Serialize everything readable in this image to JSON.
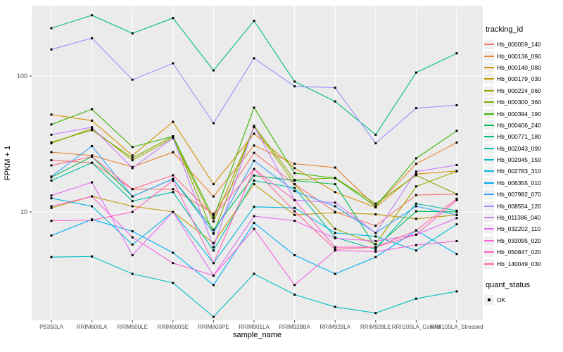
{
  "figure": {
    "xlabel": "sample_name",
    "ylabel": "FPKM + 1",
    "panel_bg": "#EBEBEB",
    "grid_color": "#FFFFFF",
    "tick_label_color": "#4D4D4D",
    "legend": {
      "color_title": "tracking_id",
      "shape_title": "quant_status",
      "shape_entry": "OK"
    }
  },
  "chart_data": {
    "type": "line",
    "title": "",
    "xlabel": "sample_name",
    "ylabel": "FPKM + 1",
    "y_scale": "log10",
    "ylim": [
      1.6,
      330
    ],
    "yticks": [
      100,
      10
    ],
    "minor_gridline_values": [
      316.2,
      31.62,
      3.162
    ],
    "legend_position": "right",
    "marker": "black-square",
    "grid": "on",
    "categories": [
      "PB350LA",
      "RRIM600LA",
      "RRIM600LE",
      "RRIM600SE",
      "RRIM600PE",
      "RRIM901LA",
      "RRIM928BA",
      "RRIM928LA",
      "RRIM928LE",
      "RRII105LA_Control",
      "RRII105LA_Stressed"
    ],
    "series": [
      {
        "name": "Hb_000059_140",
        "color": "#F8766D",
        "values": [
          24,
          23,
          14.7,
          14.7,
          9.7,
          27.2,
          16,
          10,
          7.9,
          13.3,
          13.5
        ]
      },
      {
        "name": "Hb_000136_090",
        "color": "#EA8331",
        "values": [
          27.5,
          26,
          21.4,
          27.5,
          13,
          30.8,
          22.6,
          21.2,
          11,
          22.6,
          32.4
        ]
      },
      {
        "name": "Hb_000140_080",
        "color": "#D89000",
        "values": [
          52,
          47,
          26,
          46,
          16,
          37.6,
          21,
          14,
          10.8,
          19,
          20
        ]
      },
      {
        "name": "Hb_000179_030",
        "color": "#C09B00",
        "values": [
          10.7,
          13,
          11,
          10,
          5.9,
          16,
          9.5,
          9.9,
          9.6,
          8.9,
          9.5
        ]
      },
      {
        "name": "Hb_000224_060",
        "color": "#A3A500",
        "values": [
          32,
          41,
          24,
          35,
          8.5,
          42,
          16,
          7.5,
          5.8,
          15.4,
          19.9
        ]
      },
      {
        "name": "Hb_000300_360",
        "color": "#7CAE00",
        "values": [
          32.5,
          40,
          25,
          36,
          6.9,
          43,
          17.2,
          17.8,
          11.5,
          18.6,
          13.5
        ]
      },
      {
        "name": "Hb_000394_190",
        "color": "#39B600",
        "values": [
          44,
          57,
          30,
          36,
          9,
          58.5,
          19.3,
          17.7,
          11,
          24.8,
          39.5
        ]
      },
      {
        "name": "Hb_000406_240",
        "color": "#00BB4E",
        "values": [
          18,
          25.5,
          13,
          17.5,
          7.4,
          18.5,
          17,
          16,
          5.5,
          10.1,
          10
        ]
      },
      {
        "name": "Hb_000771_180",
        "color": "#00BF7D",
        "values": [
          225,
          280,
          206,
          267,
          110,
          255,
          91,
          65,
          37,
          106,
          147
        ]
      },
      {
        "name": "Hb_002043_090",
        "color": "#00C1A3",
        "values": [
          17,
          23,
          12,
          14,
          5.2,
          17,
          15,
          6.5,
          5.3,
          11.5,
          10.2
        ]
      },
      {
        "name": "Hb_002045_150",
        "color": "#00BFC4",
        "values": [
          4.65,
          4.7,
          3.5,
          3,
          1.69,
          3.5,
          2.46,
          2,
          1.8,
          2.3,
          2.6
        ]
      },
      {
        "name": "Hb_002783_310",
        "color": "#00BAE0",
        "values": [
          12.6,
          11,
          5.75,
          10,
          4.2,
          10.9,
          10.7,
          7,
          6.6,
          5.2,
          8.1
        ]
      },
      {
        "name": "Hb_006355_010",
        "color": "#00B0F6",
        "values": [
          6.7,
          8.8,
          7.2,
          5,
          2.9,
          8.3,
          4.8,
          3.5,
          4.65,
          7.3,
          4.9
        ]
      },
      {
        "name": "Hb_007982_070",
        "color": "#35A2FF",
        "values": [
          18.2,
          30.5,
          13,
          17.5,
          7,
          23.8,
          14.2,
          11,
          7,
          11,
          9.5
        ]
      },
      {
        "name": "Hb_008554_120",
        "color": "#9590FF",
        "values": [
          157,
          190,
          94,
          124,
          45,
          135,
          84,
          82,
          32,
          58,
          61
        ]
      },
      {
        "name": "Hb_011386_040",
        "color": "#C77CFF",
        "values": [
          37,
          42,
          21,
          35,
          5.5,
          42.7,
          12.2,
          11.7,
          7,
          19.8,
          22.1
        ]
      },
      {
        "name": "Hb_032202_110",
        "color": "#E76BF3",
        "values": [
          13.2,
          16.5,
          4.8,
          10,
          3.4,
          9.3,
          8.6,
          6.4,
          6.1,
          6.8,
          9
        ]
      },
      {
        "name": "Hb_033095_020",
        "color": "#FA62DB",
        "values": [
          11,
          13,
          6.5,
          4.2,
          3.4,
          7.5,
          2.9,
          5.2,
          5.1,
          5.7,
          6.1
        ]
      },
      {
        "name": "Hb_050847_020",
        "color": "#FF62BC",
        "values": [
          8.6,
          8.7,
          10,
          17,
          4.2,
          20.7,
          12.2,
          5.5,
          5.5,
          6.8,
          12.2
        ]
      },
      {
        "name": "Hb_140049_030",
        "color": "#FF6A98",
        "values": [
          22,
          25.5,
          14.7,
          18.6,
          9.4,
          20.7,
          10.1,
          5.3,
          5.5,
          7.3,
          12.5
        ]
      }
    ]
  }
}
